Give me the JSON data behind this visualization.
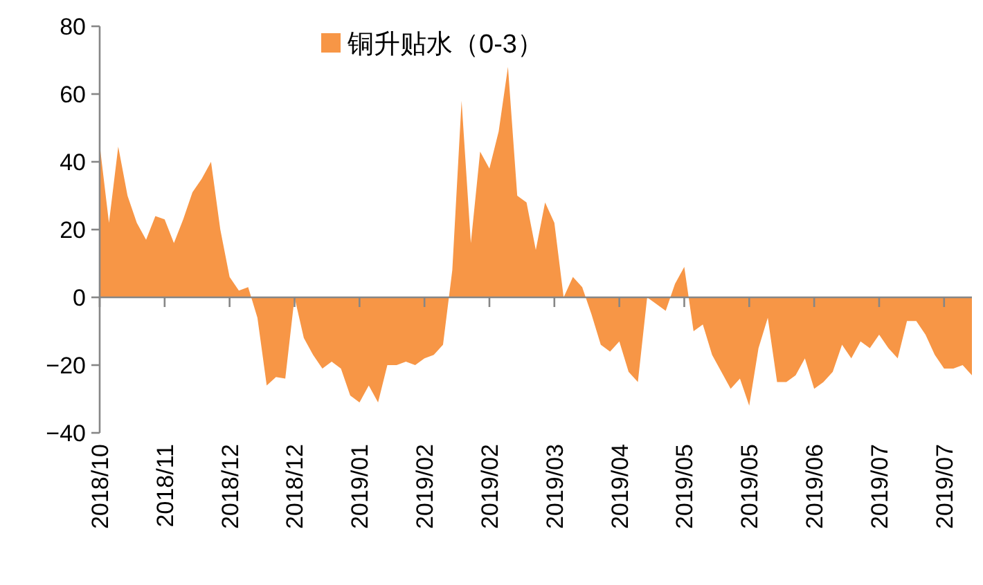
{
  "chart_data": {
    "type": "area",
    "categories": [
      "2018/10",
      null,
      null,
      null,
      null,
      null,
      null,
      "2018/11",
      null,
      null,
      null,
      null,
      null,
      null,
      "2018/12",
      null,
      null,
      null,
      null,
      null,
      null,
      "2018/12",
      null,
      null,
      null,
      null,
      null,
      null,
      "2019/01",
      null,
      null,
      null,
      null,
      null,
      null,
      "2019/02",
      null,
      null,
      null,
      null,
      null,
      null,
      "2019/02",
      null,
      null,
      null,
      null,
      null,
      null,
      "2019/03",
      null,
      null,
      null,
      null,
      null,
      null,
      "2019/04",
      null,
      null,
      null,
      null,
      null,
      null,
      "2019/05",
      null,
      null,
      null,
      null,
      null,
      null,
      "2019/05",
      null,
      null,
      null,
      null,
      null,
      null,
      "2019/06",
      null,
      null,
      null,
      null,
      null,
      null,
      "2019/07",
      null,
      null,
      null,
      null,
      null,
      null,
      "2019/07",
      null,
      null,
      null
    ],
    "series": [
      {
        "name": "铜升贴水（0-3）",
        "color": "#f79646",
        "values": [
          45,
          22,
          44.5,
          30,
          22,
          17,
          24,
          23,
          16,
          23,
          31,
          35,
          40,
          20,
          6,
          2,
          3,
          -6,
          -26,
          -23.5,
          -24,
          0,
          -12,
          -17,
          -21,
          -19,
          -21,
          -29,
          -31,
          -26,
          -31,
          -20,
          -20,
          -19,
          -20,
          -18,
          -17,
          -14,
          8,
          58,
          16,
          43,
          38,
          49,
          68,
          30,
          28,
          14,
          28,
          22,
          0,
          6,
          3,
          -5,
          -14,
          -16,
          -13,
          -22,
          -25,
          0,
          -2,
          -4,
          4,
          9,
          -10,
          -8,
          -17,
          -22,
          -27,
          -24,
          -32,
          -15,
          -6,
          -25,
          -25,
          -23,
          -18,
          -27,
          -25,
          -22,
          -14,
          -18,
          -13,
          -15,
          -11,
          -15,
          -18,
          -7,
          -7,
          -11,
          -17,
          -21,
          -21,
          -20,
          -23
        ]
      }
    ],
    "ylim": [
      -40,
      80
    ],
    "yticks": [
      -40,
      -20,
      0,
      20,
      40,
      60,
      80
    ],
    "legend": "top"
  }
}
